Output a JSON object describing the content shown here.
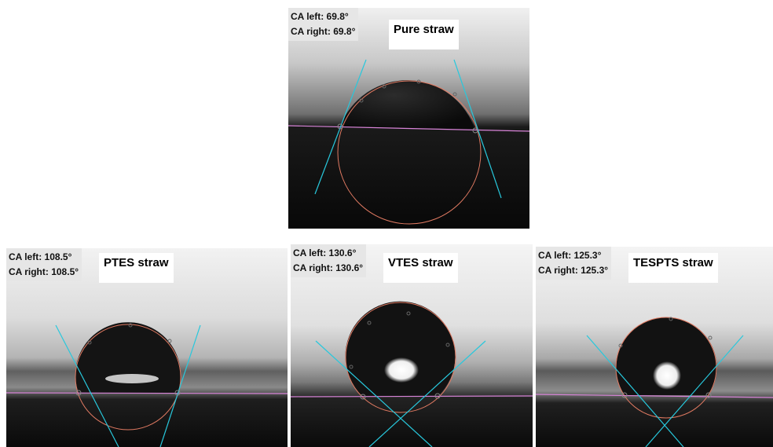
{
  "panels": [
    {
      "id": "pure",
      "title": "Pure straw",
      "ca_left": "CA left: 69.8°",
      "ca_right": "CA right: 69.8°"
    },
    {
      "id": "ptes",
      "title": "PTES straw",
      "ca_left": "CA left: 108.5°",
      "ca_right": "CA right: 108.5°"
    },
    {
      "id": "vtes",
      "title": "VTES straw",
      "ca_left": "CA left: 130.6°",
      "ca_right": "CA right: 130.6°"
    },
    {
      "id": "tespts",
      "title": "TESPTS straw",
      "ca_left": "CA left: 125.3°",
      "ca_right": "CA right: 125.3°"
    }
  ],
  "colors": {
    "tangent": "#28c8dc",
    "baseline": "#d884d8",
    "fit_circle": "#e07a62",
    "drop": "#111111"
  }
}
